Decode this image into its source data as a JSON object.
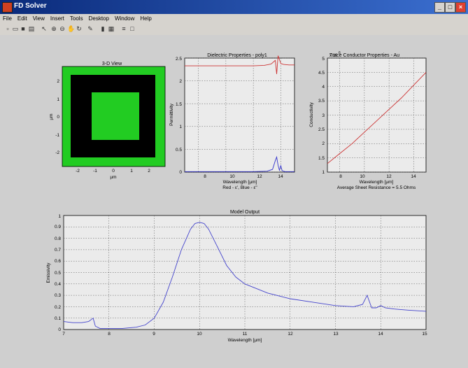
{
  "window": {
    "title": "FD Solver",
    "controls": [
      "_",
      "□",
      "×"
    ]
  },
  "menu": [
    "File",
    "Edit",
    "View",
    "Insert",
    "Tools",
    "Desktop",
    "Window",
    "Help"
  ],
  "toolbar": [
    "new-file-icon",
    "open-icon",
    "save-icon",
    "print-icon",
    "pointer-icon",
    "zoom-in-icon",
    "zoom-out-icon",
    "pan-icon",
    "rotate-icon",
    "data-cursor-icon",
    "colorbar-icon",
    "legend-icon",
    "hide-tools-icon",
    "show-tools-icon"
  ],
  "plots": {
    "view3d": {
      "title": "3-D View",
      "xlabel": "µm",
      "ylabel": "µm",
      "xticks": [
        "-2",
        "-1",
        "0",
        "1",
        "2"
      ],
      "yticks": [
        "2",
        "1",
        "0",
        "-1",
        "-2"
      ],
      "colors": {
        "outer": "#22cc22",
        "ring": "#000000",
        "inner": "#22cc22"
      }
    },
    "dielectric": {
      "title": "Dielectric Properties - poly1",
      "xlabel": "Wavelength [µm]",
      "xlabel2": "Red - ε', Blue - ε\"",
      "ylabel": "Permittivity",
      "xticks": [
        "8",
        "10",
        "12",
        "14"
      ],
      "yticks": [
        "0",
        "0.5",
        "1",
        "1.5",
        "2",
        "2.5"
      ]
    },
    "conductor": {
      "title": "Trace Conductor Properties - Au",
      "xlabel": "Wavelength [µm]",
      "xlabel2": "Average Sheet Resistance = 5.5 Ohms",
      "ylabel": "Conductivity",
      "exponent": "x 10",
      "exponent_power": "6",
      "xticks": [
        "8",
        "10",
        "12",
        "14"
      ],
      "yticks": [
        "1",
        "1.5",
        "2",
        "2.5",
        "3",
        "3.5",
        "4",
        "4.5",
        "5"
      ]
    },
    "model": {
      "title": "Model Output",
      "xlabel": "Wavelength [µm]",
      "ylabel": "Emissivity",
      "xticks": [
        "7",
        "8",
        "9",
        "10",
        "11",
        "12",
        "13",
        "14",
        "15"
      ],
      "yticks": [
        "0",
        "0.1",
        "0.2",
        "0.3",
        "0.4",
        "0.5",
        "0.6",
        "0.7",
        "0.8",
        "0.9",
        "1"
      ]
    }
  },
  "chart_data": [
    {
      "type": "heatmap",
      "title": "3-D View",
      "xlabel": "µm",
      "ylabel": "µm",
      "xlim": [
        -3,
        3
      ],
      "ylim": [
        -3,
        3
      ],
      "regions": [
        {
          "name": "background",
          "x": [
            -3,
            3
          ],
          "y": [
            -3,
            3
          ],
          "color": "#22cc22"
        },
        {
          "name": "ring",
          "x": [
            -2.4,
            2.4
          ],
          "y": [
            -2.4,
            2.4
          ],
          "color": "#000000"
        },
        {
          "name": "center",
          "x": [
            -1.4,
            1.4
          ],
          "y": [
            -1.4,
            1.4
          ],
          "color": "#22cc22"
        }
      ]
    },
    {
      "type": "line",
      "title": "Dielectric Properties - poly1",
      "xlabel": "Wavelength [µm]",
      "ylabel": "Permittivity",
      "xlim": [
        7,
        15
      ],
      "ylim": [
        0,
        2.5
      ],
      "grid": true,
      "series": [
        {
          "color": "#cc3333",
          "x": [
            7,
            8,
            9,
            10,
            11,
            12,
            12.8,
            13.3,
            13.6,
            13.7,
            13.8,
            14.0,
            14.2,
            14.6,
            15
          ],
          "y": [
            2.33,
            2.33,
            2.33,
            2.33,
            2.33,
            2.33,
            2.34,
            2.37,
            2.45,
            2.15,
            2.55,
            2.38,
            2.36,
            2.35,
            2.35
          ]
        },
        {
          "color": "#3333cc",
          "x": [
            7,
            9,
            11,
            12,
            13,
            13.4,
            13.6,
            13.7,
            13.8,
            13.9,
            14.0,
            14.1,
            14.3,
            15
          ],
          "y": [
            0.01,
            0.01,
            0.01,
            0.01,
            0.02,
            0.06,
            0.25,
            0.33,
            0.15,
            0.04,
            0.14,
            0.03,
            0.01,
            0.01
          ]
        }
      ]
    },
    {
      "type": "line",
      "title": "Trace Conductor Properties - Au",
      "xlabel": "Wavelength [µm]",
      "ylabel": "Conductivity",
      "xlim": [
        7,
        15
      ],
      "ylim": [
        1,
        5
      ],
      "y_multiplier": "x 10^6",
      "grid": true,
      "series": [
        {
          "color": "#cc3333",
          "x": [
            7,
            8,
            9,
            10,
            11,
            12,
            13,
            14,
            15
          ],
          "y": [
            1.3,
            1.65,
            2.0,
            2.4,
            2.8,
            3.2,
            3.6,
            4.05,
            4.5
          ]
        }
      ]
    },
    {
      "type": "line",
      "title": "Model Output",
      "xlabel": "Wavelength [µm]",
      "ylabel": "Emissivity",
      "xlim": [
        7,
        15
      ],
      "ylim": [
        0,
        1
      ],
      "grid": true,
      "series": [
        {
          "color": "#4444cc",
          "x": [
            7,
            7.2,
            7.4,
            7.55,
            7.65,
            7.7,
            7.8,
            8.0,
            8.3,
            8.6,
            8.8,
            9.0,
            9.2,
            9.4,
            9.6,
            9.8,
            9.9,
            10.0,
            10.1,
            10.2,
            10.4,
            10.6,
            10.8,
            11.0,
            11.5,
            12.0,
            12.5,
            13.0,
            13.4,
            13.6,
            13.7,
            13.8,
            13.9,
            14.0,
            14.1,
            14.3,
            14.6,
            15
          ],
          "y": [
            0.07,
            0.06,
            0.06,
            0.07,
            0.1,
            0.03,
            0.01,
            0.01,
            0.01,
            0.02,
            0.04,
            0.1,
            0.24,
            0.46,
            0.7,
            0.88,
            0.93,
            0.94,
            0.93,
            0.88,
            0.72,
            0.56,
            0.46,
            0.4,
            0.32,
            0.27,
            0.24,
            0.21,
            0.2,
            0.22,
            0.3,
            0.19,
            0.19,
            0.21,
            0.19,
            0.18,
            0.17,
            0.16
          ]
        }
      ]
    }
  ]
}
